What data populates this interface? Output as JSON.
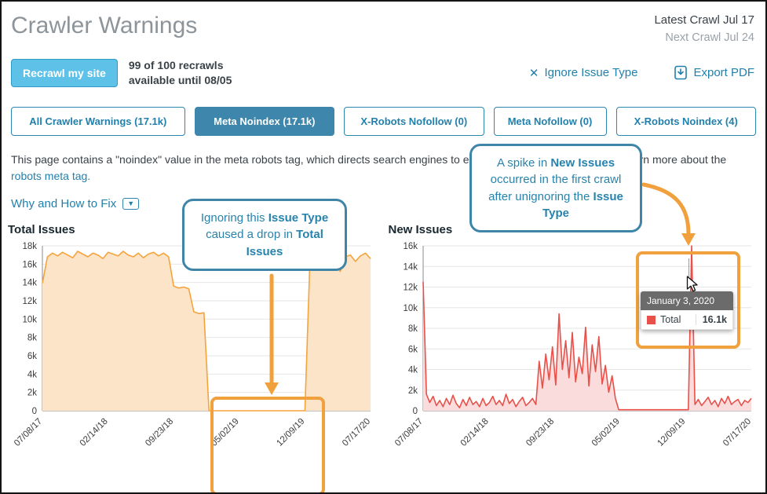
{
  "header": {
    "title": "Crawler Warnings",
    "latest_crawl": "Latest Crawl Jul 17",
    "next_crawl": "Next Crawl Jul 24"
  },
  "toolbar": {
    "recrawl_button": "Recrawl my site",
    "quota_line1": "99 of 100 recrawls",
    "quota_line2": "available until 08/05",
    "ignore_link": "Ignore Issue Type",
    "export_link": "Export PDF"
  },
  "icons": {
    "ignore": "✕",
    "caret": "▼"
  },
  "tabs": [
    {
      "label": "All Crawler Warnings (17.1k)",
      "active": false
    },
    {
      "label": "Meta Noindex (17.1k)",
      "active": true
    },
    {
      "label": "X-Robots Nofollow (0)",
      "active": false
    },
    {
      "label": "Meta Nofollow (0)",
      "active": false
    },
    {
      "label": "X-Robots Noindex (4)",
      "active": false
    }
  ],
  "description": {
    "text": "This page contains a \"noindex\" value in the meta robots tag, which directs search engines to exclude the page from its index. Learn more about the ",
    "link": "robots meta tag."
  },
  "why_link": "Why and How to Fix",
  "callouts": {
    "callout1": {
      "segments": [
        {
          "text": "Ignoring this "
        },
        {
          "text": "Issue Type",
          "bold": true
        },
        {
          "text": " caused a drop in "
        },
        {
          "text": "Total Issues",
          "bold": true
        }
      ]
    },
    "callout2": {
      "segments": [
        {
          "text": "A spike in "
        },
        {
          "text": "New Issues",
          "bold": true
        },
        {
          "text": " occurred in the first crawl after unignoring the "
        },
        {
          "text": "Issue Type",
          "bold": true
        }
      ]
    }
  },
  "tooltip": {
    "date": "January 3, 2020",
    "series_label": "Total",
    "value": "16.1k",
    "swatch_color": "#e8504a"
  },
  "colors": {
    "link_blue": "#2180ad",
    "active_tab": "#3e86ab",
    "button_blue": "#5ec1e8",
    "annotation_orange": "#f0a03c",
    "callout_border": "#3e85a8",
    "total_line": "#f5a33c",
    "new_line": "#e8504a"
  },
  "chart_data": [
    {
      "type": "area",
      "title": "Total Issues",
      "series_name": "Total Issues",
      "unit": "thousands",
      "y_max": 18,
      "y_ticks": [
        "0",
        "2k",
        "4k",
        "6k",
        "8k",
        "10k",
        "12k",
        "14k",
        "16k",
        "18k"
      ],
      "x_ticks": [
        "07/08/17",
        "02/14/18",
        "09/23/18",
        "05/02/19",
        "12/09/19",
        "07/17/20"
      ],
      "color": "#f5a33c",
      "fill": "#fce4c8",
      "values": [
        13.9,
        16.8,
        17.2,
        16.9,
        17.3,
        17,
        16.7,
        17.4,
        17.1,
        16.8,
        17.2,
        17,
        16.6,
        17.3,
        17.1,
        16.9,
        17.4,
        17,
        16.8,
        17.2,
        16.7,
        17.1,
        17.3,
        16.9,
        17.2,
        16.8,
        13.6,
        13.4,
        13.5,
        13.3,
        10.8,
        10.6,
        10.7,
        0,
        0,
        0,
        0,
        0,
        0,
        0,
        0,
        0,
        0,
        0,
        0,
        0,
        0,
        0,
        0,
        0,
        0,
        0,
        0,
        16.4,
        16.9,
        17.1,
        16.6,
        17,
        16.4,
        15.2,
        16.8,
        17,
        16.3,
        16.9,
        17.2,
        16.6
      ]
    },
    {
      "type": "area",
      "title": "New Issues",
      "series_name": "Total",
      "unit": "thousands",
      "y_max": 16,
      "y_ticks": [
        "0",
        "2k",
        "4k",
        "6k",
        "8k",
        "10k",
        "12k",
        "14k",
        "16k"
      ],
      "x_ticks": [
        "07/08/17",
        "02/14/18",
        "09/23/18",
        "05/02/19",
        "12/09/19",
        "07/17/20"
      ],
      "color": "#e8504a",
      "fill": "#fbdcdc",
      "values": [
        12.5,
        1.6,
        0.8,
        1.4,
        0.5,
        1,
        0.4,
        1.2,
        0.6,
        1.5,
        0.7,
        0.3,
        1.1,
        0.5,
        1.3,
        0.6,
        0.9,
        0.4,
        1.2,
        0.5,
        0.8,
        1.4,
        0.6,
        1,
        0.5,
        1.6,
        0.7,
        1.1,
        0.4,
        0.9,
        1.3,
        0.5,
        0.8,
        1.2,
        0.6,
        4.8,
        2.2,
        5.5,
        3,
        6.2,
        2.5,
        9.4,
        4,
        6.8,
        3.2,
        7.6,
        2.8,
        5.2,
        3.6,
        8.1,
        2.4,
        6.4,
        3.8,
        7.2,
        2.6,
        4.4,
        1.8,
        3.4,
        1.2,
        0.1,
        0.1,
        0.1,
        0.1,
        0.1,
        0.1,
        0.1,
        0.1,
        0.1,
        0.1,
        0.1,
        0.1,
        0.1,
        0.1,
        0.1,
        0.1,
        0.1,
        0.1,
        0.1,
        0.1,
        0.1,
        0.1,
        16.1,
        0.6,
        1.1,
        0.5,
        0.9,
        1.3,
        0.6,
        1,
        0.4,
        1.2,
        0.7,
        1.4,
        0.6,
        0.9,
        1.1,
        0.5,
        1,
        0.8,
        1.2
      ]
    }
  ]
}
